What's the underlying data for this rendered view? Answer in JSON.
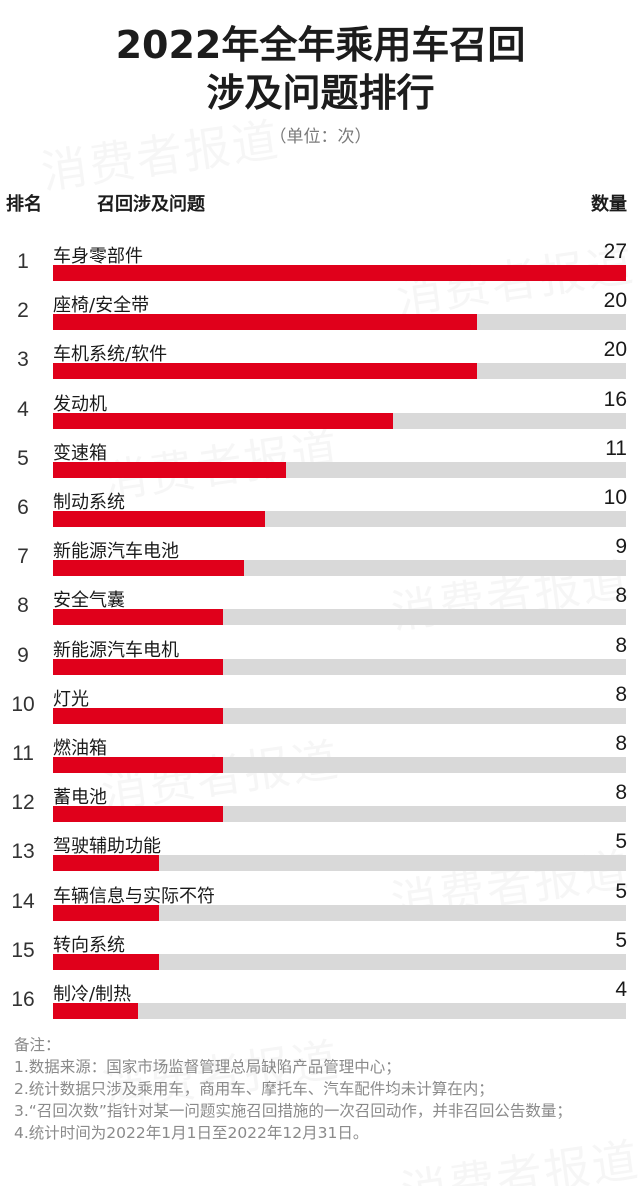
{
  "title_line1": "2022年全年乘用车召回",
  "title_line2": "涉及问题排行",
  "unit": "（单位：次）",
  "headers": {
    "rank": "排名",
    "issue": "召回涉及问题",
    "count": "数量"
  },
  "colors": {
    "bar": "#e0001b",
    "track": "#d9d9d9"
  },
  "watermark": "消费者报道",
  "chart_data": {
    "type": "bar",
    "orientation": "horizontal",
    "title": "2022年全年乘用车召回涉及问题排行",
    "subtitle": "（单位：次）",
    "xlabel": "数量",
    "ylabel": "召回涉及问题",
    "xlim": [
      0,
      27
    ],
    "grid": false,
    "legend": null,
    "categories": [
      "车身零部件",
      "座椅/安全带",
      "车机系统/软件",
      "发动机",
      "变速箱",
      "制动系统",
      "新能源汽车电池",
      "安全气囊",
      "新能源汽车电机",
      "灯光",
      "燃油箱",
      "蓄电池",
      "驾驶辅助功能",
      "车辆信息与实际不符",
      "转向系统",
      "制冷/制热"
    ],
    "values": [
      27,
      20,
      20,
      16,
      11,
      10,
      9,
      8,
      8,
      8,
      8,
      8,
      5,
      5,
      5,
      4
    ],
    "ranks": [
      1,
      2,
      3,
      4,
      5,
      6,
      7,
      8,
      9,
      10,
      11,
      12,
      13,
      14,
      15,
      16
    ]
  },
  "rows": [
    {
      "rank": "1",
      "label": "车身零部件",
      "value": "27"
    },
    {
      "rank": "2",
      "label": "座椅/安全带",
      "value": "20"
    },
    {
      "rank": "3",
      "label": "车机系统/软件",
      "value": "20"
    },
    {
      "rank": "4",
      "label": "发动机",
      "value": "16"
    },
    {
      "rank": "5",
      "label": "变速箱",
      "value": "11"
    },
    {
      "rank": "6",
      "label": "制动系统",
      "value": "10"
    },
    {
      "rank": "7",
      "label": "新能源汽车电池",
      "value": "9"
    },
    {
      "rank": "8",
      "label": "安全气囊",
      "value": "8"
    },
    {
      "rank": "9",
      "label": "新能源汽车电机",
      "value": "8"
    },
    {
      "rank": "10",
      "label": "灯光",
      "value": "8"
    },
    {
      "rank": "11",
      "label": "燃油箱",
      "value": "8"
    },
    {
      "rank": "12",
      "label": "蓄电池",
      "value": "8"
    },
    {
      "rank": "13",
      "label": "驾驶辅助功能",
      "value": "5"
    },
    {
      "rank": "14",
      "label": "车辆信息与实际不符",
      "value": "5"
    },
    {
      "rank": "15",
      "label": "转向系统",
      "value": "5"
    },
    {
      "rank": "16",
      "label": "制冷/制热",
      "value": "4"
    }
  ],
  "notes": {
    "heading": "备注：",
    "lines": [
      "1.数据来源：国家市场监督管理总局缺陷产品管理中心；",
      "2.统计数据只涉及乘用车，商用车、摩托车、汽车配件均未计算在内；",
      "3.“召回次数”指针对某一问题实施召回措施的一次召回动作，并非召回公告数量；",
      "4.统计时间为2022年1月1日至2022年12月31日。"
    ]
  }
}
